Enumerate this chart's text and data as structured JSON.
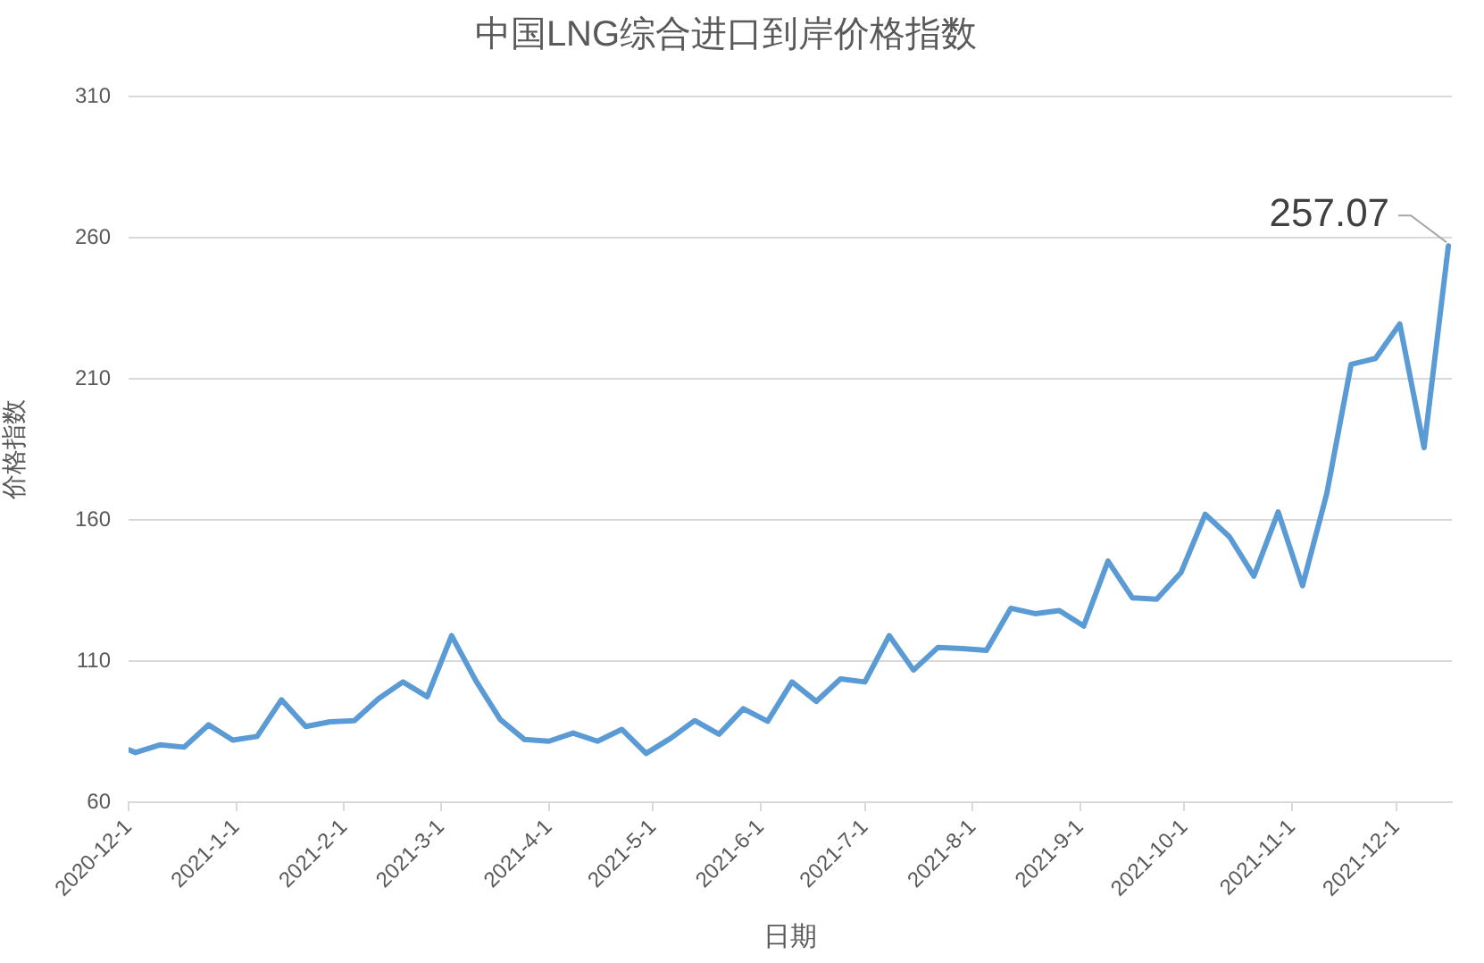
{
  "chart_data": {
    "type": "line",
    "title": "中国LNG综合进口到岸价格指数",
    "xlabel": "日期",
    "ylabel": "价格指数",
    "x": [
      "2020-12-01",
      "2020-12-03",
      "2020-12-10",
      "2020-12-17",
      "2020-12-24",
      "2020-12-31",
      "2021-01-07",
      "2021-01-14",
      "2021-01-21",
      "2021-01-28",
      "2021-02-04",
      "2021-02-11",
      "2021-02-18",
      "2021-02-25",
      "2021-03-04",
      "2021-03-11",
      "2021-03-18",
      "2021-03-25",
      "2021-04-01",
      "2021-04-08",
      "2021-04-15",
      "2021-04-22",
      "2021-04-29",
      "2021-05-06",
      "2021-05-13",
      "2021-05-20",
      "2021-05-27",
      "2021-06-03",
      "2021-06-10",
      "2021-06-17",
      "2021-06-24",
      "2021-07-01",
      "2021-07-08",
      "2021-07-15",
      "2021-07-22",
      "2021-07-29",
      "2021-08-05",
      "2021-08-12",
      "2021-08-19",
      "2021-08-26",
      "2021-09-02",
      "2021-09-09",
      "2021-09-16",
      "2021-09-23",
      "2021-09-30",
      "2021-10-07",
      "2021-10-14",
      "2021-10-21",
      "2021-10-28",
      "2021-11-04",
      "2021-11-11",
      "2021-11-18",
      "2021-11-25",
      "2021-12-02",
      "2021-12-09",
      "2021-12-16"
    ],
    "series": [
      {
        "color": "#5b9bd5",
        "values": [
          78.6,
          77.6,
          80.3,
          79.5,
          87.4,
          82.0,
          83.3,
          96.3,
          86.8,
          88.5,
          88.9,
          96.7,
          102.6,
          97.4,
          119.0,
          103.0,
          89.3,
          82.2,
          81.6,
          84.5,
          81.6,
          85.8,
          77.3,
          82.6,
          88.9,
          84.1,
          93.1,
          88.7,
          102.6,
          95.7,
          103.7,
          102.6,
          119.0,
          106.8,
          114.8,
          114.4,
          113.8,
          128.7,
          126.8,
          127.9,
          122.4,
          145.4,
          132.4,
          131.9,
          141.3,
          162.0,
          154.0,
          140.1,
          162.8,
          136.7,
          169.4,
          215.1,
          217.2,
          229.4,
          185.6,
          257.07
        ],
        "value_labels": [
          null,
          null,
          null,
          null,
          null,
          null,
          null,
          null,
          null,
          null,
          null,
          null,
          null,
          null,
          null,
          null,
          null,
          null,
          null,
          null,
          null,
          null,
          null,
          null,
          null,
          null,
          null,
          null,
          null,
          null,
          null,
          null,
          null,
          null,
          null,
          null,
          null,
          null,
          null,
          null,
          null,
          null,
          null,
          null,
          null,
          null,
          null,
          null,
          null,
          null,
          null,
          null,
          null,
          null,
          null,
          "257.07"
        ]
      }
    ],
    "xlim": [
      "2020-12-01",
      "2021-12-17"
    ],
    "xticks": [
      {
        "value": "2020-12-01",
        "label": "2020-12-1"
      },
      {
        "value": "2021-01-01",
        "label": "2021-1-1"
      },
      {
        "value": "2021-02-01",
        "label": "2021-2-1"
      },
      {
        "value": "2021-03-01",
        "label": "2021-3-1"
      },
      {
        "value": "2021-04-01",
        "label": "2021-4-1"
      },
      {
        "value": "2021-05-01",
        "label": "2021-5-1"
      },
      {
        "value": "2021-06-01",
        "label": "2021-6-1"
      },
      {
        "value": "2021-07-01",
        "label": "2021-7-1"
      },
      {
        "value": "2021-08-01",
        "label": "2021-8-1"
      },
      {
        "value": "2021-09-01",
        "label": "2021-9-1"
      },
      {
        "value": "2021-10-01",
        "label": "2021-10-1"
      },
      {
        "value": "2021-11-01",
        "label": "2021-11-1"
      },
      {
        "value": "2021-12-01",
        "label": "2021-12-1"
      }
    ],
    "ylim": [
      60,
      310
    ],
    "yticks": [
      60,
      110,
      160,
      210,
      260,
      310
    ],
    "grid": "y"
  }
}
